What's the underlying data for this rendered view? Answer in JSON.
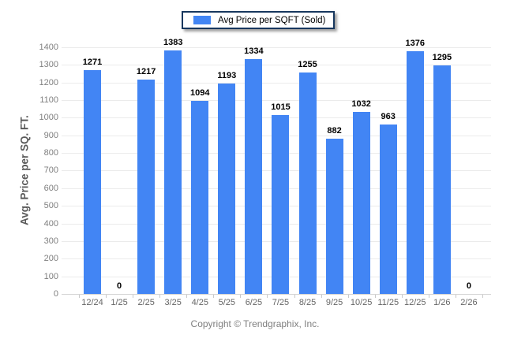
{
  "legend": {
    "label": "Avg Price per SQFT (Sold)",
    "swatch_color": "#4285f4"
  },
  "y_axis": {
    "title": "Avg. Price per SQ. FT.",
    "tick_labels": [
      "0",
      "100",
      "200",
      "300",
      "400",
      "500",
      "600",
      "700",
      "800",
      "900",
      "1000",
      "1100",
      "1200",
      "1300",
      "1400"
    ]
  },
  "footer": {
    "copyright": "Copyright © Trendgraphix, Inc."
  },
  "chart_data": {
    "type": "bar",
    "title": "Avg Price per SQFT (Sold)",
    "categories": [
      "12/24",
      "1/25",
      "2/25",
      "3/25",
      "4/25",
      "5/25",
      "6/25",
      "7/25",
      "8/25",
      "9/25",
      "10/25",
      "11/25",
      "12/25",
      "1/26",
      "2/26"
    ],
    "values": [
      1271,
      0,
      1217,
      1383,
      1094,
      1193,
      1334,
      1015,
      1255,
      882,
      1032,
      963,
      1376,
      1295,
      0
    ],
    "xlabel": "",
    "ylabel": "Avg. Price per SQ. FT.",
    "ylim": [
      0,
      1400
    ],
    "ytick_step": 100,
    "bar_color": "#4285f4",
    "grid": true,
    "data_labels": true,
    "legend_position": "top-center"
  }
}
